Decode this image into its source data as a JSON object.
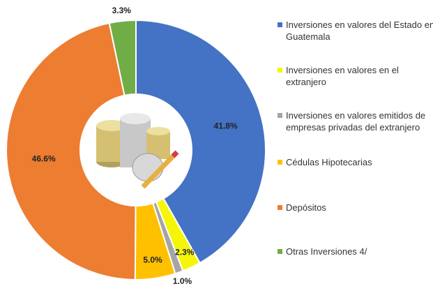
{
  "chart_data": {
    "type": "donut",
    "series": [
      {
        "name": "Inversiones en valores del Estado en Guatemala",
        "color": "#4472c4"
      },
      {
        "name": "Inversiones en valores en el extranjero",
        "color": "#f5f50a"
      },
      {
        "name": "Inversiones en valores emitidos de empresas privadas del extranjero",
        "color": "#a5a5a5"
      },
      {
        "name": "Cédulas Hipotecarias",
        "color": "#ffc000"
      },
      {
        "name": "Depósitos",
        "color": "#ed7d31"
      },
      {
        "name": "Otras Inversiones 4/",
        "color": "#70ad47"
      }
    ],
    "values": [
      41.8,
      2.3,
      1.0,
      5.0,
      46.6,
      3.3
    ],
    "value_labels": [
      "41.8%",
      "2.3%",
      "1.0%",
      "5.0%",
      "46.6%",
      "3.3%"
    ],
    "legend": "right"
  }
}
